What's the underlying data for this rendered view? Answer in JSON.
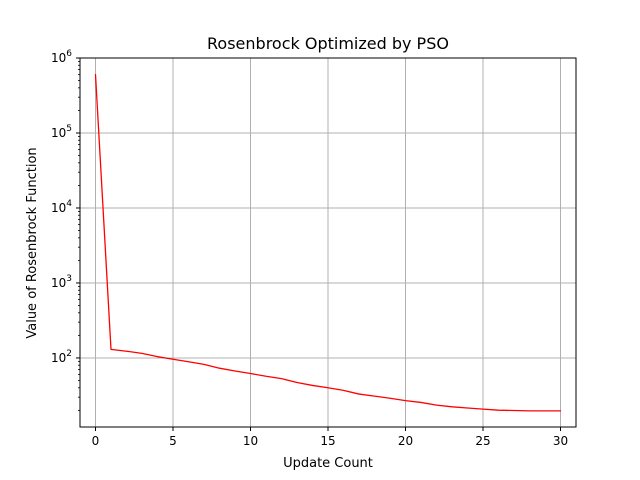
{
  "chart_data": {
    "type": "line",
    "title": "Rosenbrock Optimized by PSO",
    "xlabel": "Update Count",
    "ylabel": "Value of Rosenbrock Function",
    "x_ticks": [
      "0",
      "5",
      "10",
      "15",
      "20",
      "25",
      "30"
    ],
    "y_tick_labels": [
      {
        "base": "10",
        "exp": "2"
      },
      {
        "base": "10",
        "exp": "3"
      },
      {
        "base": "10",
        "exp": "4"
      },
      {
        "base": "10",
        "exp": "5"
      },
      {
        "base": "10",
        "exp": "6"
      }
    ],
    "xlim": [
      -1,
      31
    ],
    "ylim": [
      12,
      1000000
    ],
    "y_scale": "log",
    "grid": true,
    "series": [
      {
        "color": "#ff0000",
        "x": [
          0,
          1,
          2,
          3,
          4,
          5,
          6,
          7,
          8,
          9,
          10,
          11,
          12,
          13,
          14,
          15,
          16,
          17,
          18,
          19,
          20,
          21,
          22,
          23,
          24,
          25,
          26,
          27,
          28,
          29,
          30
        ],
        "y": [
          600000,
          130,
          123,
          115,
          104,
          96,
          89,
          82,
          73,
          67,
          62,
          57,
          53,
          47,
          43,
          40,
          37,
          33,
          31,
          29,
          27,
          25.5,
          23.5,
          22.3,
          21.5,
          20.8,
          20.1,
          19.9,
          19.7,
          19.7,
          19.7
        ]
      }
    ]
  }
}
